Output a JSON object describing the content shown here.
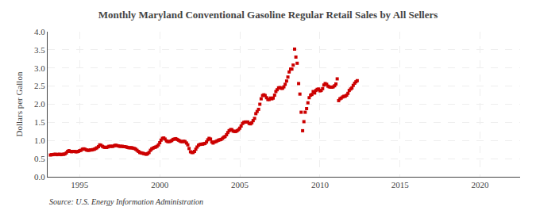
{
  "chart_data": {
    "type": "scatter",
    "title": "Monthly Maryland Conventional Gasoline Regular Retail Sales by All Sellers",
    "ylabel": "Dollars per Gallon",
    "annotations": [
      "Source: U.S. Energy Information Administration"
    ],
    "color": "#cc0000",
    "marker": "square",
    "grid": true,
    "xlim": [
      1993.0,
      2022.5
    ],
    "ylim": [
      0.0,
      4.0
    ],
    "xticks": [
      1995,
      2000,
      2005,
      2010,
      2015,
      2020
    ],
    "yticks": [
      {
        "value": 0.0,
        "label": "0.0"
      },
      0.5,
      {
        "value": 1.0,
        "label": "1.0"
      },
      1.5,
      {
        "value": 2.0,
        "label": "2.0"
      },
      2.5,
      {
        "value": 3.0,
        "label": "3.0"
      },
      3.5,
      {
        "value": 4.0,
        "label": "4.0"
      }
    ],
    "x": [
      1993.17,
      1993.25,
      1993.33,
      1993.42,
      1993.5,
      1993.58,
      1993.67,
      1993.75,
      1993.83,
      1993.92,
      1994.0,
      1994.08,
      1994.17,
      1994.25,
      1994.33,
      1994.42,
      1994.5,
      1994.58,
      1994.67,
      1994.75,
      1994.83,
      1994.92,
      1995.0,
      1995.08,
      1995.17,
      1995.25,
      1995.33,
      1995.42,
      1995.5,
      1995.58,
      1995.67,
      1995.75,
      1995.83,
      1995.92,
      1996.0,
      1996.08,
      1996.17,
      1996.25,
      1996.33,
      1996.42,
      1996.5,
      1996.58,
      1996.67,
      1996.75,
      1996.83,
      1996.92,
      1997.0,
      1997.08,
      1997.17,
      1997.25,
      1997.33,
      1997.42,
      1997.5,
      1997.58,
      1997.67,
      1997.75,
      1997.83,
      1997.92,
      1998.0,
      1998.08,
      1998.17,
      1998.25,
      1998.33,
      1998.42,
      1998.5,
      1998.58,
      1998.67,
      1998.75,
      1998.83,
      1998.92,
      1999.0,
      1999.08,
      1999.17,
      1999.25,
      1999.33,
      1999.42,
      1999.5,
      1999.58,
      1999.67,
      1999.75,
      1999.83,
      1999.92,
      2000.0,
      2000.08,
      2000.17,
      2000.25,
      2000.33,
      2000.42,
      2000.5,
      2000.58,
      2000.67,
      2000.75,
      2000.83,
      2000.92,
      2001.0,
      2001.08,
      2001.17,
      2001.25,
      2001.33,
      2001.42,
      2001.5,
      2001.58,
      2001.67,
      2001.75,
      2001.83,
      2001.92,
      2002.0,
      2002.08,
      2002.17,
      2002.25,
      2002.33,
      2002.42,
      2002.5,
      2002.58,
      2002.67,
      2002.75,
      2002.83,
      2002.92,
      2003.0,
      2003.08,
      2003.17,
      2003.25,
      2003.33,
      2003.42,
      2003.5,
      2003.58,
      2003.67,
      2003.75,
      2003.83,
      2003.92,
      2004.0,
      2004.08,
      2004.17,
      2004.25,
      2004.33,
      2004.42,
      2004.5,
      2004.58,
      2004.67,
      2004.75,
      2004.83,
      2004.92,
      2005.0,
      2005.08,
      2005.17,
      2005.25,
      2005.33,
      2005.42,
      2005.5,
      2005.58,
      2005.67,
      2005.75,
      2005.83,
      2005.92,
      2006.0,
      2006.08,
      2006.17,
      2006.25,
      2006.33,
      2006.42,
      2006.5,
      2006.58,
      2006.67,
      2006.75,
      2006.83,
      2006.92,
      2007.0,
      2007.08,
      2007.17,
      2007.25,
      2007.33,
      2007.42,
      2007.5,
      2007.58,
      2007.67,
      2007.75,
      2007.83,
      2007.92,
      2008.0,
      2008.08,
      2008.17,
      2008.25,
      2008.33,
      2008.42,
      2008.5,
      2008.58,
      2008.67,
      2008.75,
      2008.83,
      2008.92,
      2009.0,
      2009.08,
      2009.17,
      2009.25,
      2009.33,
      2009.42,
      2009.5,
      2009.58,
      2009.67,
      2009.75,
      2009.83,
      2009.92,
      2010.0,
      2010.08,
      2010.17,
      2010.25,
      2010.33,
      2010.42,
      2010.5,
      2010.58,
      2010.67,
      2010.75,
      2010.83,
      2010.92,
      2011.0,
      2011.08,
      2011.17,
      2011.25,
      2011.33,
      2011.42,
      2011.5,
      2011.58,
      2011.67,
      2011.75,
      2011.83,
      2011.92,
      2012.0,
      2012.08,
      2012.17,
      2012.25,
      2012.33
    ],
    "values": [
      0.6,
      0.61,
      0.61,
      0.62,
      0.62,
      0.61,
      0.62,
      0.62,
      0.61,
      0.62,
      0.62,
      0.63,
      0.66,
      0.7,
      0.72,
      0.7,
      0.69,
      0.7,
      0.7,
      0.69,
      0.69,
      0.7,
      0.72,
      0.73,
      0.76,
      0.77,
      0.76,
      0.74,
      0.73,
      0.73,
      0.74,
      0.74,
      0.75,
      0.76,
      0.78,
      0.8,
      0.83,
      0.88,
      0.87,
      0.84,
      0.82,
      0.81,
      0.81,
      0.82,
      0.84,
      0.84,
      0.84,
      0.84,
      0.86,
      0.87,
      0.86,
      0.85,
      0.84,
      0.84,
      0.84,
      0.83,
      0.83,
      0.82,
      0.81,
      0.8,
      0.8,
      0.8,
      0.79,
      0.78,
      0.76,
      0.73,
      0.7,
      0.67,
      0.66,
      0.65,
      0.64,
      0.63,
      0.62,
      0.64,
      0.67,
      0.73,
      0.77,
      0.79,
      0.81,
      0.82,
      0.84,
      0.88,
      0.94,
      1.01,
      1.06,
      1.07,
      1.04,
      0.99,
      0.97,
      0.97,
      0.98,
      1.0,
      1.03,
      1.04,
      1.05,
      1.03,
      1.01,
      0.99,
      0.97,
      0.97,
      0.98,
      0.97,
      0.93,
      0.88,
      0.78,
      0.69,
      0.67,
      0.67,
      0.7,
      0.76,
      0.82,
      0.87,
      0.89,
      0.9,
      0.9,
      0.91,
      0.92,
      0.96,
      1.02,
      1.06,
      1.04,
      0.96,
      0.93,
      0.96,
      0.97,
      0.99,
      1.01,
      1.02,
      1.03,
      1.06,
      1.09,
      1.11,
      1.16,
      1.22,
      1.27,
      1.3,
      1.3,
      1.26,
      1.25,
      1.25,
      1.27,
      1.3,
      1.34,
      1.4,
      1.47,
      1.5,
      1.51,
      1.51,
      1.51,
      1.47,
      1.46,
      1.49,
      1.55,
      1.61,
      1.74,
      1.8,
      1.86,
      2.0,
      2.15,
      2.24,
      2.26,
      2.24,
      2.18,
      2.13,
      2.13,
      2.17,
      2.15,
      2.17,
      2.25,
      2.35,
      2.4,
      2.45,
      2.46,
      2.44,
      2.44,
      2.48,
      2.55,
      2.64,
      2.75,
      2.89,
      2.97,
      2.97,
      3.08,
      3.52,
      3.3,
      3.13,
      2.57,
      2.28,
      1.78,
      1.27,
      1.52,
      1.78,
      1.88,
      2.04,
      2.18,
      2.25,
      2.27,
      2.35,
      2.31,
      2.38,
      2.41,
      2.42,
      2.37,
      2.38,
      2.43,
      2.53,
      2.57,
      2.55,
      2.5,
      2.48,
      2.47,
      2.47,
      2.48,
      2.51,
      2.56,
      2.7,
      2.1,
      2.15,
      2.17,
      2.2,
      2.22,
      2.22,
      2.25,
      2.3,
      2.38,
      2.42,
      2.45,
      2.52,
      2.58,
      2.62,
      2.65
    ]
  }
}
